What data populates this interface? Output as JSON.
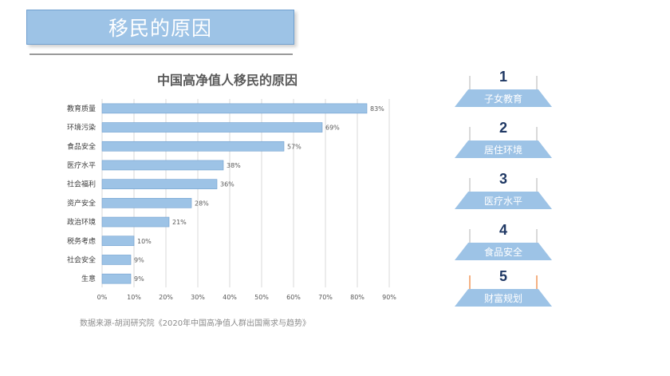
{
  "slide": {
    "title": "移民的原因",
    "source_note": "数据来源-胡润研究院《2020年中国高净值人群出国需求与趋势》"
  },
  "chart_data": {
    "type": "bar",
    "orientation": "horizontal",
    "title": "中国高净值人移民的原因",
    "categories": [
      "教育质量",
      "环境污染",
      "食品安全",
      "医疗水平",
      "社会福利",
      "资产安全",
      "政治环境",
      "税务考虑",
      "社会安全",
      "生意"
    ],
    "values": [
      83,
      69,
      57,
      38,
      36,
      28,
      21,
      10,
      9,
      9
    ],
    "value_labels": [
      "83%",
      "69%",
      "57%",
      "38%",
      "36%",
      "28%",
      "21%",
      "10%",
      "9%",
      "9%"
    ],
    "xlim": [
      0,
      90
    ],
    "xticks": [
      "0%",
      "10%",
      "20%",
      "30%",
      "40%",
      "50%",
      "60%",
      "70%",
      "80%",
      "90%"
    ],
    "grid": true,
    "bar_color": "#9dc3e6"
  },
  "ranking": [
    {
      "rank": "1",
      "label": "子女教育"
    },
    {
      "rank": "2",
      "label": "居住环境"
    },
    {
      "rank": "3",
      "label": "医疗水平"
    },
    {
      "rank": "4",
      "label": "食品安全"
    },
    {
      "rank": "5",
      "label": "财富规划"
    }
  ]
}
